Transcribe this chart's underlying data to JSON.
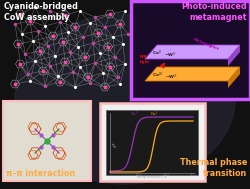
{
  "bg_color": "#111111",
  "title_top_left": "Cyanido-bridged\nCoW assembly",
  "title_top_right": "Photo-induced\nmetamagnet",
  "title_bot_left": "π–π interaction",
  "title_bot_right": "Thermal phase\ntransition",
  "top_right_box_border": "#cc55ff",
  "bot_left_box_border": "#ffbbbb",
  "bot_right_box_border": "#ffbbbb",
  "plate_top_color": "#cc99ff",
  "plate_top_dark": "#9944cc",
  "plate_bot_color": "#ffaa33",
  "plate_bot_dark": "#cc7700",
  "arrow_color": "#dd1111",
  "text_white": "#ffffff",
  "text_magenta": "#ff55ff",
  "text_orange": "#ffaa44",
  "curve_purple": "#9933bb",
  "curve_orange": "#ffaa22",
  "network_node_pink": "#ff44aa",
  "network_node_white": "#ffffff",
  "network_stick": "#cccccc",
  "ring_color": "#dddddd",
  "glow_color": "#2a2a3a"
}
